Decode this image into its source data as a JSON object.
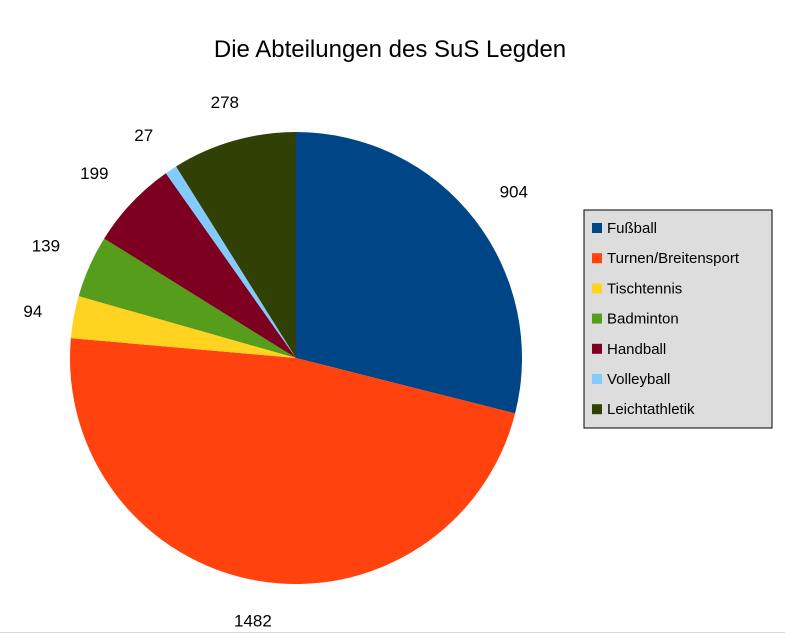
{
  "chart_data": {
    "type": "pie",
    "title": "Die Abteilungen des SuS Legden",
    "categories": [
      "Fußball",
      "Turnen/Breitensport",
      "Tischtennis",
      "Badminton",
      "Handball",
      "Volleyball",
      "Leichtathletik"
    ],
    "values": [
      904,
      1482,
      94,
      139,
      199,
      27,
      278
    ],
    "colors": [
      "#004586",
      "#ff420e",
      "#ffd320",
      "#579d1c",
      "#7e0021",
      "#83caff",
      "#314004"
    ],
    "legend": "right",
    "data_labels": true
  }
}
